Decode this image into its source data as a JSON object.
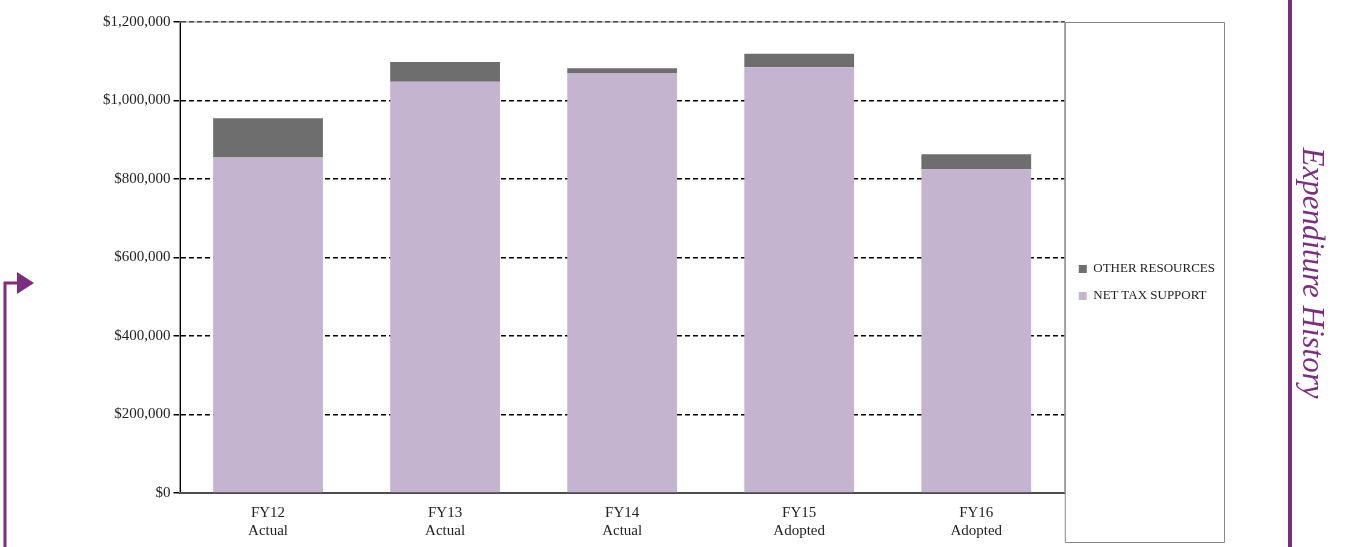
{
  "chart_data": {
    "type": "bar",
    "title": "Expenditure History",
    "categories": [
      "FY12\nActual",
      "FY13\nActual",
      "FY14\nActual",
      "FY15\nAdopted",
      "FY16\nAdopted"
    ],
    "stacked": true,
    "series": [
      {
        "name": "NET TAX SUPPORT",
        "color": "#c4b4d0",
        "values": [
          855000,
          1048000,
          1069000,
          1085000,
          825000
        ]
      },
      {
        "name": "OTHER RESOURCES",
        "color": "#6e6e6e",
        "values": [
          100000,
          50000,
          13000,
          34000,
          38000
        ]
      }
    ],
    "ylim": [
      0,
      1200000
    ],
    "yticks": [
      {
        "value": 0,
        "label": "$0"
      },
      {
        "value": 200000,
        "label": "$200,000"
      },
      {
        "value": 400000,
        "label": "$400,000"
      },
      {
        "value": 600000,
        "label": "$600,000"
      },
      {
        "value": 800000,
        "label": "$800,000"
      },
      {
        "value": 1000000,
        "label": "$1,000,000"
      },
      {
        "value": 1200000,
        "label": "$1,200,000"
      }
    ],
    "grid": "y",
    "legend": "right"
  }
}
